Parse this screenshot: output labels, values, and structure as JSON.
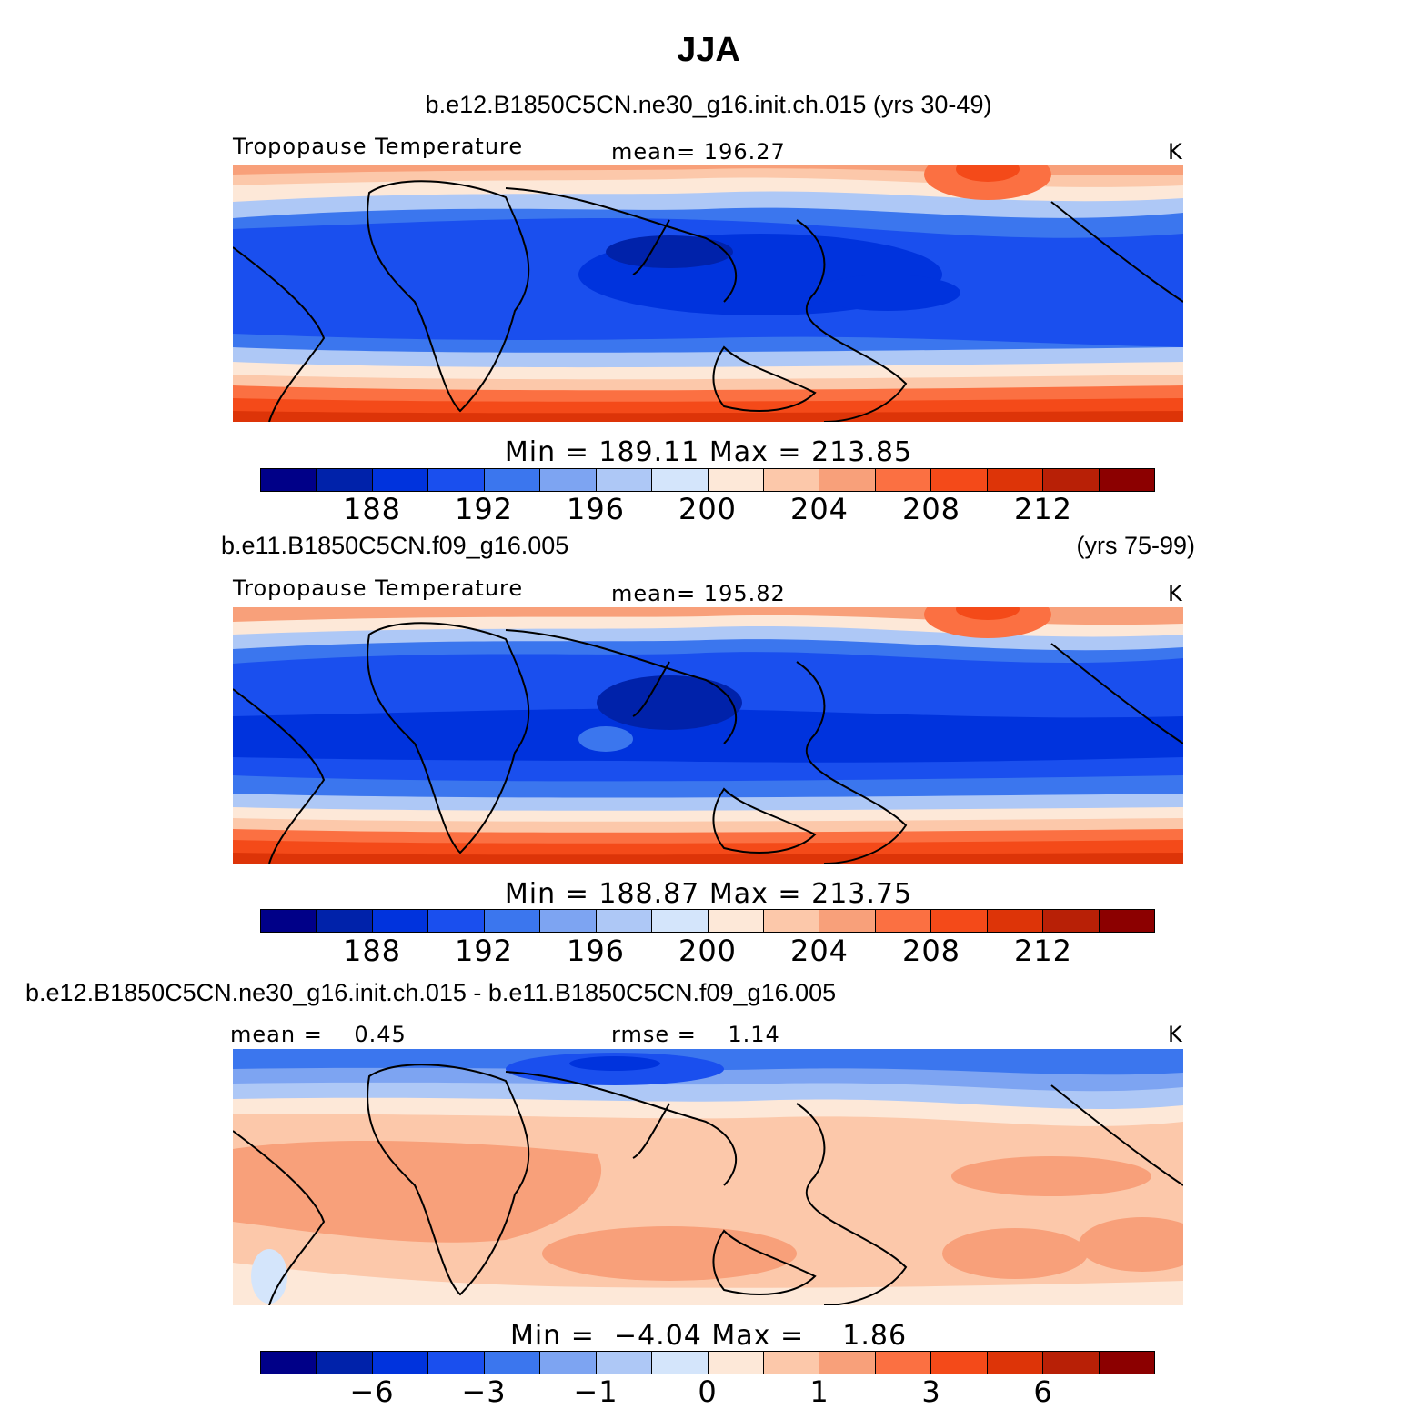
{
  "main_title": "JJA",
  "palette": [
    "#000088",
    "#0022aa",
    "#0033dd",
    "#1a4fee",
    "#3b76ee",
    "#7da4f2",
    "#aec8f6",
    "#d4e5fb",
    "#fde8d8",
    "#fcc8aa",
    "#f8a07a",
    "#fb7042",
    "#f44a19",
    "#dd3408",
    "#b82006",
    "#8c0000"
  ],
  "chart_data": [
    {
      "type": "heatmap",
      "case_title": "b.e12.B1850C5CN.ne30_g16.init.ch.015 (yrs 30-49)",
      "variable_label": "Tropopause Temperature",
      "center_label": "mean= 196.27",
      "units": "K",
      "mean": 196.27,
      "min_max_label": "Min = 189.11 Max = 213.85",
      "min": 189.11,
      "max": 213.85,
      "colorbar_ticks": [
        "188",
        "192",
        "196",
        "200",
        "204",
        "208",
        "212"
      ],
      "colorbar_levels": [
        186,
        188,
        190,
        192,
        194,
        196,
        198,
        200,
        202,
        204,
        206,
        208,
        210,
        212,
        214
      ]
    },
    {
      "type": "heatmap",
      "case_title": "b.e11.B1850C5CN.f09_g16.005",
      "case_years": "(yrs 75-99)",
      "variable_label": "Tropopause Temperature",
      "center_label": "mean= 195.82",
      "units": "K",
      "mean": 195.82,
      "min_max_label": "Min = 188.87 Max = 213.75",
      "min": 188.87,
      "max": 213.75,
      "colorbar_ticks": [
        "188",
        "192",
        "196",
        "200",
        "204",
        "208",
        "212"
      ],
      "colorbar_levels": [
        186,
        188,
        190,
        192,
        194,
        196,
        198,
        200,
        202,
        204,
        206,
        208,
        210,
        212,
        214
      ]
    },
    {
      "type": "heatmap",
      "case_title": "b.e12.B1850C5CN.ne30_g16.init.ch.015 - b.e11.B1850C5CN.f09_g16.005",
      "left_label": "mean =    0.45",
      "center_label": "rmse =    1.14",
      "units": "K",
      "mean": 0.45,
      "rmse": 1.14,
      "min_max_label": "Min =  −4.04 Max =    1.86",
      "min": -4.04,
      "max": 1.86,
      "colorbar_ticks": [
        "−6",
        "−3",
        "−1",
        "0",
        "1",
        "3",
        "6"
      ],
      "colorbar_levels": [
        -8,
        -6,
        -4,
        -3,
        -2,
        -1,
        -0.5,
        0,
        0.5,
        1,
        2,
        3,
        4,
        6,
        8
      ]
    }
  ]
}
